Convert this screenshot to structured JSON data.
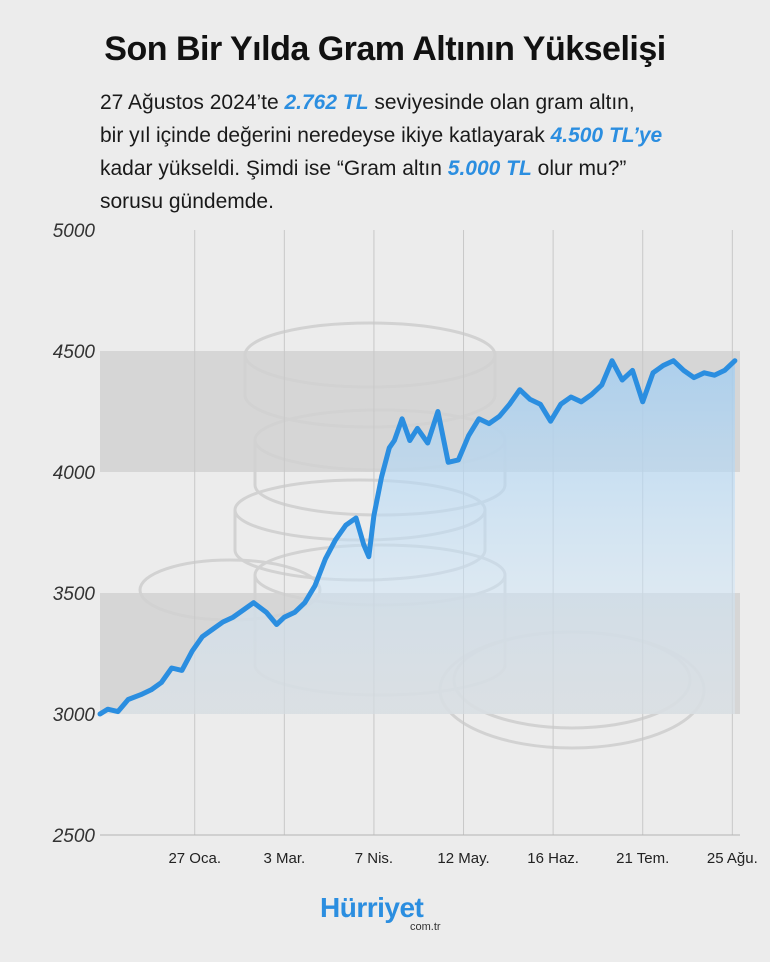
{
  "header": {
    "title": "Son Bir Yılda Gram Altının Yükselişi",
    "line1_a": "27 Ağustos 2024’te ",
    "line1_b": "2.762 TL",
    "line1_c": " seviyesinde olan gram altın,",
    "line2_a": "bir yıl içinde değerini neredeyse ikiye katlayarak ",
    "line2_b": "4.500 TL’ye",
    "line3_a": "kadar yükseldi. Şimdi ise “Gram altın ",
    "line3_b": "5.000 TL",
    "line3_c": " olur mu?”",
    "line4": "sorusu gündemde."
  },
  "brand": {
    "name": "Hürriyet",
    "domain": "com.tr"
  },
  "colors": {
    "line": "#2b8ee0",
    "band": "#d6d6d6",
    "background": "#ececec",
    "accent": "#2b8ee0"
  },
  "chart_data": {
    "type": "line",
    "title": "",
    "xlabel": "",
    "ylabel": "",
    "ylim": [
      2500,
      5000
    ],
    "yticks": [
      2500,
      3000,
      3500,
      4000,
      4500,
      5000
    ],
    "xlim": [
      "2024-12-21",
      "2025-08-28"
    ],
    "xticks": [
      {
        "label": "27 Oca.",
        "date": "2025-01-27"
      },
      {
        "label": "3 Mar.",
        "date": "2025-03-03"
      },
      {
        "label": "7 Nis.",
        "date": "2025-04-07"
      },
      {
        "label": "12 May.",
        "date": "2025-05-12"
      },
      {
        "label": "16 Haz.",
        "date": "2025-06-16"
      },
      {
        "label": "21 Tem.",
        "date": "2025-07-21"
      },
      {
        "label": "25 Ağu.",
        "date": "2025-08-25"
      }
    ],
    "grid": "vertical lines and alternating horizontal bands",
    "series": [
      {
        "x": [
          "2024-12-21",
          "2024-12-24",
          "2024-12-28",
          "2025-01-01",
          "2025-01-06",
          "2025-01-10",
          "2025-01-14",
          "2025-01-18",
          "2025-01-22",
          "2025-01-26",
          "2025-01-30",
          "2025-02-03",
          "2025-02-07",
          "2025-02-11",
          "2025-02-15",
          "2025-02-19",
          "2025-02-24",
          "2025-02-28",
          "2025-03-03",
          "2025-03-07",
          "2025-03-11",
          "2025-03-15",
          "2025-03-19",
          "2025-03-23",
          "2025-03-27",
          "2025-03-31",
          "2025-04-03",
          "2025-04-05",
          "2025-04-07",
          "2025-04-10",
          "2025-04-13",
          "2025-04-15",
          "2025-04-18",
          "2025-04-21",
          "2025-04-24",
          "2025-04-28",
          "2025-05-02",
          "2025-05-06",
          "2025-05-10",
          "2025-05-14",
          "2025-05-18",
          "2025-05-22",
          "2025-05-26",
          "2025-05-30",
          "2025-06-03",
          "2025-06-07",
          "2025-06-11",
          "2025-06-15",
          "2025-06-19",
          "2025-06-23",
          "2025-06-27",
          "2025-07-01",
          "2025-07-05",
          "2025-07-09",
          "2025-07-13",
          "2025-07-17",
          "2025-07-21",
          "2025-07-25",
          "2025-07-29",
          "2025-08-02",
          "2025-08-06",
          "2025-08-10",
          "2025-08-14",
          "2025-08-18",
          "2025-08-22",
          "2025-08-26"
        ],
        "values": [
          3000,
          3020,
          3010,
          3060,
          3080,
          3100,
          3130,
          3190,
          3180,
          3260,
          3320,
          3350,
          3380,
          3400,
          3430,
          3460,
          3420,
          3370,
          3400,
          3420,
          3460,
          3530,
          3640,
          3720,
          3780,
          3810,
          3700,
          3650,
          3820,
          3980,
          4100,
          4130,
          4220,
          4130,
          4180,
          4120,
          4250,
          4040,
          4050,
          4150,
          4220,
          4200,
          4230,
          4280,
          4340,
          4300,
          4280,
          4210,
          4280,
          4310,
          4290,
          4320,
          4360,
          4460,
          4380,
          4420,
          4290,
          4410,
          4440,
          4460,
          4420,
          4390,
          4410,
          4400,
          4420,
          4460
        ]
      }
    ]
  }
}
